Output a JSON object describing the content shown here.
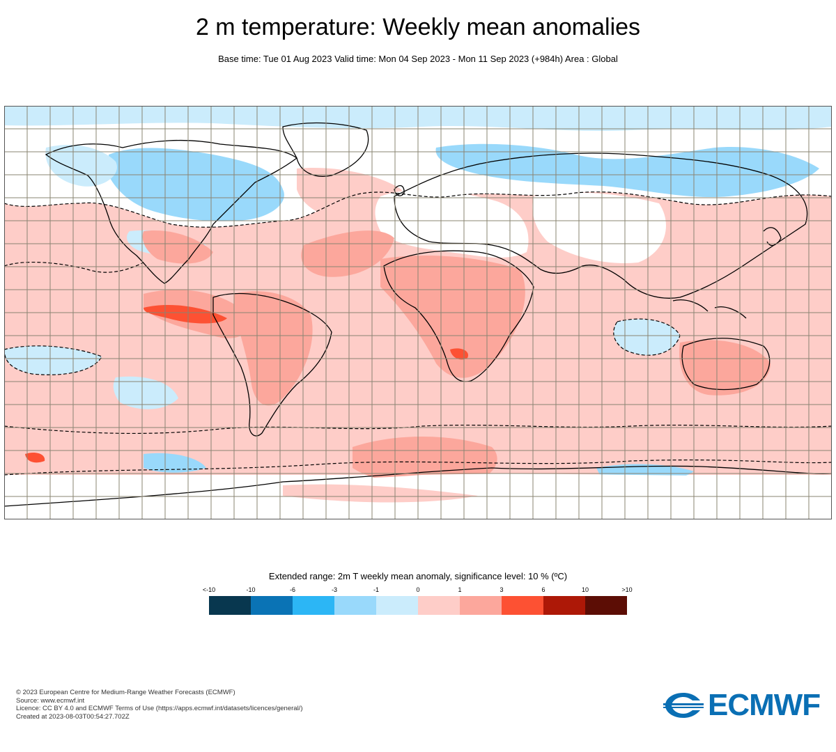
{
  "header": {
    "title": "2 m temperature: Weekly mean anomalies",
    "subtitle": "Base time: Tue 01 Aug 2023 Valid time: Mon 04 Sep 2023 - Mon 11 Sep 2023 (+984h) Area : Global"
  },
  "map": {
    "projection": "equirectangular",
    "area": "Global",
    "grid_spacing_deg": 10,
    "colors": {
      "land_outline": "#000000",
      "grid": "#8a8472",
      "significance_contour": "#000000"
    }
  },
  "legend": {
    "title": "Extended range: 2m T weekly mean anomaly, significance level: 10 % (ºC)",
    "labels": [
      "<-10",
      "-10",
      "-6",
      "-3",
      "-1",
      "0",
      "1",
      "3",
      "6",
      "10",
      ">10"
    ],
    "colors": [
      "#08374f",
      "#0a73b5",
      "#2cb6f5",
      "#99d9fb",
      "#cbecfc",
      "#fecdc8",
      "#fca79c",
      "#fd5133",
      "#ad1807",
      "#5c0d05"
    ]
  },
  "footer": {
    "lines": [
      "© 2023 European Centre for Medium-Range Weather Forecasts (ECMWF)",
      "Source: www.ecmwf.int",
      "Licence: CC BY 4.0 and ECMWF Terms of Use (https://apps.ecmwf.int/datasets/licences/general/)",
      "Created at 2023-08-03T00:54:27.702Z"
    ]
  },
  "logo": {
    "text": "ECMWF",
    "color": "#0a6fb4"
  }
}
